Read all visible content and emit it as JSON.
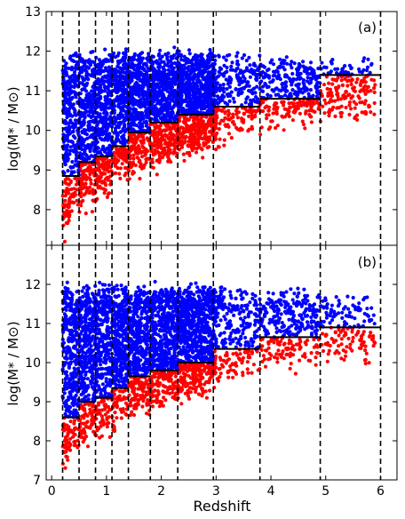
{
  "figure": {
    "xlabel": "Redshift",
    "panels": [
      {
        "label": "(a)",
        "ylabel": "log(M* / M⊙)",
        "yticks": [
          "8",
          "9",
          "10",
          "11",
          "12",
          "13"
        ],
        "xticks": [
          "0",
          "1",
          "2",
          "3",
          "4",
          "5",
          "6"
        ]
      },
      {
        "label": "(b)",
        "ylabel": "log(M* / M⊙)",
        "yticks": [
          "7",
          "8",
          "9",
          "10",
          "11",
          "12"
        ],
        "xticks": [
          "0",
          "1",
          "2",
          "3",
          "4",
          "5",
          "6"
        ]
      }
    ]
  },
  "chart_data": [
    {
      "type": "scatter",
      "panel": "(a)",
      "xlabel": "",
      "ylabel": "log(M* / M⊙)",
      "xlim": [
        -0.1,
        6.3
      ],
      "ylim": [
        7.1,
        13.0
      ],
      "colors": {
        "upper": "#0000ff",
        "lower": "#ff0000",
        "threshold_line": "#000000",
        "bin_edges": "#000000"
      },
      "bin_edges": [
        0.2,
        0.5,
        0.8,
        1.1,
        1.4,
        1.8,
        2.3,
        2.95,
        3.8,
        4.9,
        6.0
      ],
      "threshold_steps": [
        {
          "x0": 0.2,
          "x1": 0.5,
          "y": 8.85
        },
        {
          "x0": 0.5,
          "x1": 0.8,
          "y": 9.2
        },
        {
          "x0": 0.8,
          "x1": 1.1,
          "y": 9.35
        },
        {
          "x0": 1.1,
          "x1": 1.4,
          "y": 9.6
        },
        {
          "x0": 1.4,
          "x1": 1.8,
          "y": 9.95
        },
        {
          "x0": 1.8,
          "x1": 2.3,
          "y": 10.2
        },
        {
          "x0": 2.3,
          "x1": 2.95,
          "y": 10.4
        },
        {
          "x0": 2.95,
          "x1": 3.8,
          "y": 10.6
        },
        {
          "x0": 3.8,
          "x1": 4.9,
          "y": 10.8
        },
        {
          "x0": 4.9,
          "x1": 6.0,
          "y": 11.4
        }
      ],
      "point_envelope": {
        "z_min": 0.2,
        "z_max": 5.9,
        "mass_max": 11.8,
        "mass_min_at_z": [
          [
            0.2,
            7.4
          ],
          [
            0.5,
            8.1
          ],
          [
            1.0,
            8.5
          ],
          [
            1.5,
            8.9
          ],
          [
            2.0,
            9.2
          ],
          [
            2.5,
            9.4
          ],
          [
            3.0,
            9.7
          ],
          [
            3.5,
            9.9
          ],
          [
            4.0,
            10.1
          ],
          [
            5.0,
            10.3
          ],
          [
            5.9,
            10.3
          ]
        ]
      },
      "n_points_drawn": 4200
    },
    {
      "type": "scatter",
      "panel": "(b)",
      "xlabel": "Redshift",
      "ylabel": "log(M* / M⊙)",
      "xlim": [
        -0.1,
        6.3
      ],
      "ylim": [
        7.0,
        13.0
      ],
      "colors": {
        "upper": "#0000ff",
        "lower": "#ff0000",
        "threshold_line": "#000000",
        "bin_edges": "#000000"
      },
      "bin_edges": [
        0.2,
        0.5,
        0.8,
        1.1,
        1.4,
        1.8,
        2.3,
        2.95,
        3.8,
        4.9,
        6.0
      ],
      "threshold_steps": [
        {
          "x0": 0.2,
          "x1": 0.5,
          "y": 8.6
        },
        {
          "x0": 0.5,
          "x1": 0.8,
          "y": 9.0
        },
        {
          "x0": 0.8,
          "x1": 1.1,
          "y": 9.1
        },
        {
          "x0": 1.1,
          "x1": 1.4,
          "y": 9.35
        },
        {
          "x0": 1.4,
          "x1": 1.8,
          "y": 9.65
        },
        {
          "x0": 1.8,
          "x1": 2.3,
          "y": 9.8
        },
        {
          "x0": 2.3,
          "x1": 2.95,
          "y": 10.0
        },
        {
          "x0": 2.95,
          "x1": 3.8,
          "y": 10.35
        },
        {
          "x0": 3.8,
          "x1": 4.9,
          "y": 10.65
        },
        {
          "x0": 4.9,
          "x1": 6.0,
          "y": 10.9
        }
      ],
      "point_envelope": {
        "z_min": 0.2,
        "z_max": 5.9,
        "mass_max": 11.8,
        "mass_min_at_z": [
          [
            0.2,
            7.3
          ],
          [
            0.5,
            7.9
          ],
          [
            1.0,
            8.3
          ],
          [
            1.5,
            8.7
          ],
          [
            2.0,
            9.0
          ],
          [
            2.5,
            9.2
          ],
          [
            3.0,
            9.5
          ],
          [
            3.5,
            9.7
          ],
          [
            4.0,
            9.9
          ],
          [
            5.0,
            10.1
          ],
          [
            5.9,
            10.1
          ]
        ]
      },
      "n_points_drawn": 4200
    }
  ]
}
